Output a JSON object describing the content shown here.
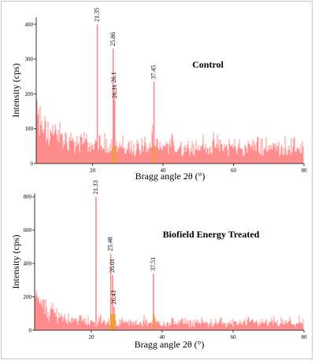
{
  "chart_data": [
    {
      "type": "line",
      "title": "Control",
      "xlabel": "Bragg angle 2θ (°)",
      "ylabel": "Intensity (cps)",
      "xlim": [
        4,
        80
      ],
      "ylim": [
        0,
        420
      ],
      "x_ticks": [
        20,
        40,
        60,
        80
      ],
      "y_ticks": [
        0,
        100,
        200,
        300,
        400
      ],
      "grid": false,
      "line_color": "#ff8c8c",
      "peak_color": "#f0a020",
      "noise": {
        "start": 120,
        "decay": 6,
        "base": 55,
        "jitter": 45
      },
      "peaks": [
        {
          "label": "21.35",
          "x": 21.35,
          "y": 400
        },
        {
          "label": "25.86",
          "x": 25.86,
          "y": 330
        },
        {
          "label": "26.1",
          "x": 26.1,
          "y": 225
        },
        {
          "label": "26.31",
          "x": 26.31,
          "y": 180
        },
        {
          "label": "37.45",
          "x": 37.45,
          "y": 235
        }
      ]
    },
    {
      "type": "line",
      "title": "Biofield Energy Treated",
      "xlabel": "Bragg angle 2θ (°)",
      "ylabel": "Intensity (cps)",
      "xlim": [
        4,
        80
      ],
      "ylim": [
        0,
        820
      ],
      "x_ticks": [
        20,
        40,
        60,
        80
      ],
      "y_ticks": [
        0,
        200,
        400,
        600,
        800
      ],
      "grid": false,
      "line_color": "#ff8c8c",
      "peak_color": "#f0a020",
      "noise": {
        "start": 200,
        "decay": 6,
        "base": 45,
        "jitter": 55
      },
      "peaks": [
        {
          "label": "21.33",
          "x": 21.33,
          "y": 800
        },
        {
          "label": "25.48",
          "x": 25.48,
          "y": 460
        },
        {
          "label": "26.01",
          "x": 26.01,
          "y": 330
        },
        {
          "label": "26.43",
          "x": 26.43,
          "y": 140
        },
        {
          "label": "37.51",
          "x": 37.51,
          "y": 340
        }
      ]
    }
  ]
}
